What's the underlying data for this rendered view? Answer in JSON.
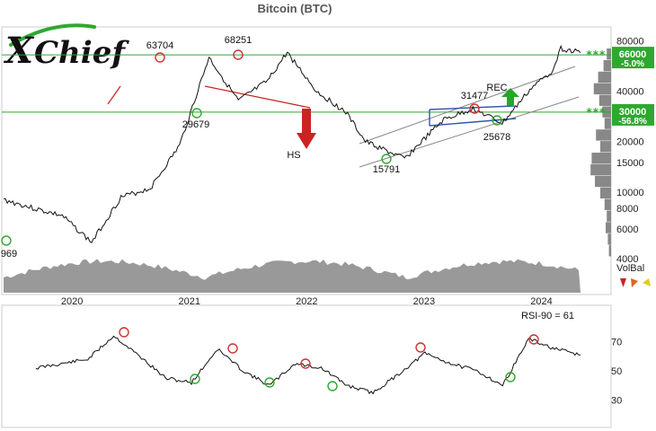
{
  "chart_data": [
    {
      "type": "line",
      "title": "Bitcoin (BTC)",
      "yscale": "log",
      "ylim": [
        4000,
        90000
      ],
      "y_ticks": [
        80000,
        40000,
        20000,
        15000,
        10000,
        8000,
        6000,
        4000
      ],
      "x_tick_labels": [
        "2020",
        "2021",
        "2022",
        "2023",
        "2024"
      ],
      "x": [
        "2019-06",
        "2019-09",
        "2019-12",
        "2020-03",
        "2020-06",
        "2020-09",
        "2020-12",
        "2021-03",
        "2021-06",
        "2021-09",
        "2021-11",
        "2022-02",
        "2022-05",
        "2022-07",
        "2022-11",
        "2023-03",
        "2023-06",
        "2023-09",
        "2023-12",
        "2024-02",
        "2024-03",
        "2024-05"
      ],
      "values": [
        9000,
        8000,
        7200,
        5000,
        9300,
        10500,
        19000,
        63704,
        35000,
        46000,
        68251,
        40000,
        30000,
        20000,
        15791,
        27000,
        31477,
        25678,
        42000,
        52000,
        72000,
        68000
      ],
      "price_labels": [
        {
          "text": "63704",
          "kind": "top"
        },
        {
          "text": "68251",
          "kind": "top"
        },
        {
          "text": "29679",
          "kind": "bottom"
        },
        {
          "text": "31477",
          "kind": "top"
        },
        {
          "text": "15791",
          "kind": "bottom"
        },
        {
          "text": "25678",
          "kind": "bottom"
        },
        {
          "text": "969",
          "kind": "bottom"
        }
      ],
      "patterns": [
        {
          "text": "HS",
          "direction": "down",
          "color": "#cc2222"
        },
        {
          "text": "REC",
          "direction": "up",
          "color": "#22aa22"
        }
      ],
      "levels": [
        {
          "value": 66000,
          "label": "66000",
          "pct": "-5.0%",
          "color": "#2fa82f",
          "marker": "***"
        },
        {
          "value": 30000,
          "label": "30000",
          "pct": "-56.8%",
          "color": "#2fa82f",
          "marker": "***"
        }
      ],
      "volume_label": "VolBal",
      "volume_profile": [
        0.2,
        0.35,
        0.6,
        0.8,
        0.55,
        0.4,
        0.3,
        0.7,
        0.5,
        0.9,
        0.95,
        0.75,
        0.5,
        0.3,
        0.2,
        0.25,
        0.15,
        0.1
      ]
    },
    {
      "type": "line",
      "series": [
        {
          "name": "RSI-90 = 61",
          "values": [
            52,
            55,
            58,
            74,
            60,
            45,
            42,
            65,
            50,
            40,
            55,
            52,
            40,
            35,
            48,
            62,
            55,
            50,
            40,
            72,
            65,
            61
          ]
        }
      ],
      "y_ticks": [
        70,
        50,
        30
      ],
      "ylim": [
        15,
        90
      ]
    }
  ],
  "logo": {
    "first": "X",
    "rest": "Chief"
  }
}
